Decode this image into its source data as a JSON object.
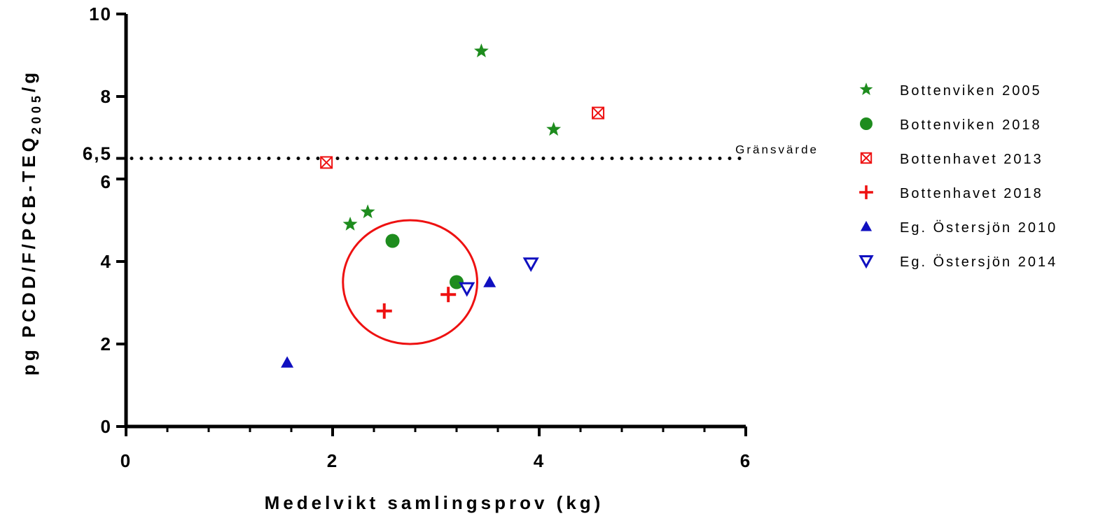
{
  "chart_data": {
    "type": "scatter",
    "title": "",
    "xlabel": "Medelvikt samlingsprov (kg)",
    "ylabel": {
      "prefix": "pg PCDD/F/PCB-TEQ",
      "subscript": "2005",
      "suffix": "/g"
    },
    "xlim": [
      0,
      6
    ],
    "ylim": [
      0,
      10
    ],
    "x_ticks": [
      {
        "value": 0,
        "label": "0"
      },
      {
        "value": 2,
        "label": "2"
      },
      {
        "value": 4,
        "label": "4"
      },
      {
        "value": 6,
        "label": "6"
      }
    ],
    "y_ticks": [
      {
        "value": 0,
        "label": "0"
      },
      {
        "value": 2,
        "label": "2"
      },
      {
        "value": 4,
        "label": "4"
      },
      {
        "value": 6,
        "label": "6"
      },
      {
        "value": 6.5,
        "label": "6,5"
      },
      {
        "value": 8,
        "label": "8"
      },
      {
        "value": 10,
        "label": "10"
      }
    ],
    "grid": false,
    "legend_position": "right",
    "threshold": {
      "value": 6.5,
      "label": "Gränsvärde",
      "style": "dotted"
    },
    "highlight_circle": {
      "cx": 2.75,
      "cy": 3.5,
      "rx": 0.65,
      "ry": 1.5,
      "color": "#ee1111"
    },
    "series": [
      {
        "name": "Bottenviken 2005",
        "marker": "star",
        "color": "#1e8c1e",
        "points": [
          [
            2.17,
            4.9
          ],
          [
            2.34,
            5.2
          ],
          [
            3.44,
            9.1
          ],
          [
            4.14,
            7.2
          ]
        ]
      },
      {
        "name": "Bottenviken 2018",
        "marker": "circle",
        "color": "#1e8c1e",
        "points": [
          [
            2.58,
            4.5
          ],
          [
            3.2,
            3.5
          ]
        ]
      },
      {
        "name": "Bottenhavet 2013",
        "marker": "box-x",
        "color": "#ee1111",
        "points": [
          [
            1.94,
            6.4
          ],
          [
            4.57,
            7.6
          ]
        ]
      },
      {
        "name": "Bottenhavet 2018",
        "marker": "plus",
        "color": "#ee1111",
        "points": [
          [
            2.5,
            2.8
          ],
          [
            3.12,
            3.2
          ]
        ]
      },
      {
        "name": "Eg. Östersjön 2010",
        "marker": "triangle-up",
        "color": "#1010c0",
        "points": [
          [
            1.56,
            1.55
          ],
          [
            3.52,
            3.5
          ]
        ]
      },
      {
        "name": "Eg. Östersjön 2014",
        "marker": "triangle-down-open",
        "color": "#1010c0",
        "points": [
          [
            3.3,
            3.35
          ],
          [
            3.92,
            3.95
          ]
        ]
      }
    ]
  }
}
